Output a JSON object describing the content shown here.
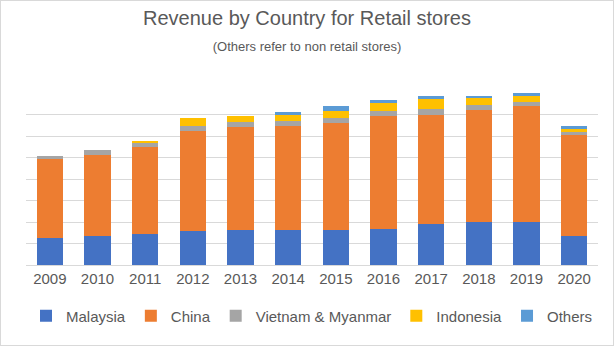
{
  "chart_data": {
    "type": "bar",
    "title": "Revenue by Country for Retail stores",
    "subtitle": "(Others refer to non retail stores)",
    "categories": [
      "2009",
      "2010",
      "2011",
      "2012",
      "2013",
      "2014",
      "2015",
      "2016",
      "2017",
      "2018",
      "2019",
      "2020"
    ],
    "series": [
      {
        "name": "Malaysia",
        "color": "#4472C4",
        "values": [
          1.27,
          1.36,
          1.45,
          1.59,
          1.64,
          1.64,
          1.64,
          1.68,
          1.91,
          2.0,
          2.0,
          1.36
        ]
      },
      {
        "name": "China",
        "color": "#ED7D31",
        "values": [
          3.64,
          3.77,
          4.05,
          4.64,
          4.77,
          4.82,
          4.95,
          5.23,
          5.09,
          5.23,
          5.41,
          4.68
        ]
      },
      {
        "name": "Vietnam & Myanmar",
        "color": "#A5A5A5",
        "values": [
          0.18,
          0.23,
          0.18,
          0.23,
          0.23,
          0.23,
          0.27,
          0.27,
          0.27,
          0.23,
          0.18,
          0.14
        ]
      },
      {
        "name": "Indonesia",
        "color": "#FFC000",
        "values": [
          0,
          0,
          0.09,
          0.36,
          0.27,
          0.32,
          0.32,
          0.36,
          0.45,
          0.32,
          0.27,
          0.18
        ]
      },
      {
        "name": "Others",
        "color": "#5B9BD5",
        "values": [
          0,
          0,
          0,
          0,
          0,
          0.09,
          0.23,
          0.14,
          0.14,
          0.09,
          0.14,
          0.09
        ]
      }
    ],
    "stacked": true,
    "ylim": [
      0,
      8
    ],
    "yticks": [
      0,
      1,
      2,
      3,
      4,
      5,
      6,
      7,
      8
    ],
    "grid": true,
    "legend": "bottom",
    "tick_labels": "x"
  }
}
